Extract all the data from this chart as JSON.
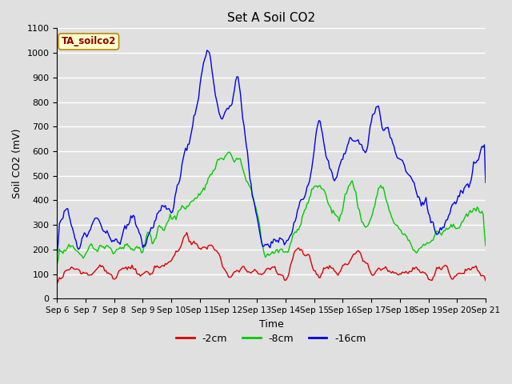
{
  "title": "Set A Soil CO2",
  "ylabel": "Soil CO2 (mV)",
  "xlabel": "Time",
  "annotation": "TA_soilco2",
  "ylim": [
    0,
    1100
  ],
  "xlim": [
    0,
    360
  ],
  "bg_color": "#e0e0e0",
  "colors": {
    "2cm": "#dd0000",
    "8cm": "#00cc00",
    "16cm": "#0000ee"
  },
  "legend": [
    "-2cm",
    "-8cm",
    "-16cm"
  ],
  "xtick_labels": [
    "Sep 6",
    "Sep 7",
    "Sep 8",
    "Sep 9",
    "Sep 10",
    "Sep 11",
    "Sep 12",
    "Sep 13",
    "Sep 14",
    "Sep 15",
    "Sep 16",
    "Sep 17",
    "Sep 18",
    "Sep 19",
    "Sep 20",
    "Sep 21"
  ],
  "xtick_positions": [
    0,
    24,
    48,
    72,
    96,
    120,
    144,
    168,
    192,
    216,
    240,
    264,
    288,
    312,
    336,
    360
  ]
}
